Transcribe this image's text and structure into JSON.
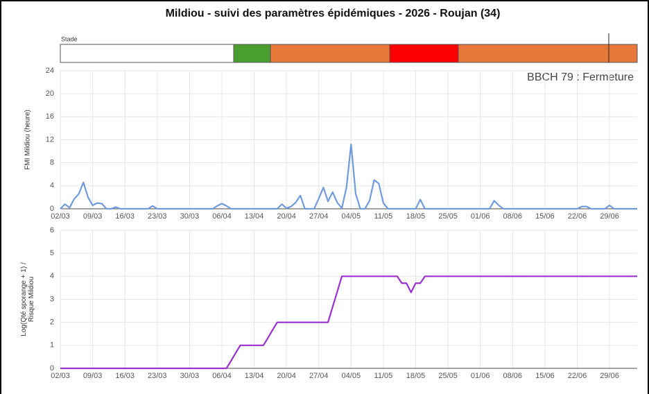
{
  "stage_label": "Stade",
  "chart_data": [
    {
      "type": "line",
      "title": "Mildiou - suivi des paramètres épidémiques - 2026 - Roujan (34)",
      "annotation": "BBCH 79 : Fermeture",
      "ylabel": [
        "FMI Mildiou (heure)"
      ],
      "categories": [
        "02/03",
        null,
        null,
        null,
        null,
        null,
        null,
        "09/03",
        null,
        null,
        null,
        null,
        null,
        null,
        "16/03",
        null,
        null,
        null,
        null,
        null,
        null,
        "23/03",
        null,
        null,
        null,
        null,
        null,
        null,
        "30/03",
        null,
        null,
        null,
        null,
        null,
        null,
        "06/04",
        null,
        null,
        null,
        null,
        null,
        null,
        "13/04",
        null,
        null,
        null,
        null,
        null,
        null,
        "20/04",
        null,
        null,
        null,
        null,
        null,
        null,
        "27/04",
        null,
        null,
        null,
        null,
        null,
        null,
        "04/05",
        null,
        null,
        null,
        null,
        null,
        null,
        "11/05",
        null,
        null,
        null,
        null,
        null,
        null,
        "18/05",
        null,
        null,
        null,
        null,
        null,
        null,
        "25/05",
        null,
        null,
        null,
        null,
        null,
        null,
        "01/06",
        null,
        null,
        null,
        null,
        null,
        null,
        "08/06",
        null,
        null,
        null,
        null,
        null,
        null,
        "15/06",
        null,
        null,
        null,
        null,
        null,
        null,
        "22/06",
        null,
        null,
        null,
        null,
        null,
        null,
        "29/06",
        null,
        null,
        null,
        null,
        null,
        null
      ],
      "series": [
        {
          "name": "FMI",
          "color": "#6f9bde",
          "values": [
            0,
            0.8,
            0.2,
            1.7,
            2.6,
            4.6,
            2,
            0.6,
            1,
            0.9,
            0,
            0,
            0.3,
            0,
            0,
            0,
            0,
            0,
            0,
            0,
            0.5,
            0,
            0,
            0,
            0,
            0,
            0,
            0,
            0,
            0,
            0,
            0,
            0,
            0,
            0.5,
            0.9,
            0.5,
            0,
            0,
            0,
            0,
            0,
            0,
            0,
            0,
            0,
            0,
            0,
            0.8,
            0.1,
            0.4,
            1.1,
            2.3,
            0,
            0,
            0,
            1.8,
            3.7,
            1.3,
            2.9,
            1.1,
            0.1,
            3.7,
            11.2,
            2.6,
            0,
            0,
            1.4,
            5,
            4.4,
            1,
            0,
            0,
            0,
            0,
            0,
            0,
            0,
            1.6,
            0,
            0,
            0,
            0,
            0,
            0,
            0,
            0,
            0,
            0,
            0,
            0,
            0,
            0,
            0,
            1.4,
            0.6,
            0,
            0,
            0,
            0,
            0,
            0,
            0,
            0,
            0,
            0,
            0,
            0,
            0,
            0,
            0,
            0,
            0,
            0.4,
            0.4,
            0,
            0,
            0,
            0,
            0.6,
            0,
            0,
            0,
            0,
            0,
            0
          ]
        }
      ],
      "ylim": [
        0,
        24
      ],
      "yticks": [
        0,
        4,
        8,
        12,
        16,
        20,
        24
      ],
      "grid": true
    },
    {
      "type": "line",
      "ylabel": [
        "Log(Qté sporange + 1) /",
        "Risque Mildiou"
      ],
      "categories": [
        "02/03",
        null,
        null,
        null,
        null,
        null,
        null,
        "09/03",
        null,
        null,
        null,
        null,
        null,
        null,
        "16/03",
        null,
        null,
        null,
        null,
        null,
        null,
        "23/03",
        null,
        null,
        null,
        null,
        null,
        null,
        "30/03",
        null,
        null,
        null,
        null,
        null,
        null,
        "06/04",
        null,
        null,
        null,
        null,
        null,
        null,
        "13/04",
        null,
        null,
        null,
        null,
        null,
        null,
        "20/04",
        null,
        null,
        null,
        null,
        null,
        null,
        "27/04",
        null,
        null,
        null,
        null,
        null,
        null,
        "04/05",
        null,
        null,
        null,
        null,
        null,
        null,
        "11/05",
        null,
        null,
        null,
        null,
        null,
        null,
        "18/05",
        null,
        null,
        null,
        null,
        null,
        null,
        "25/05",
        null,
        null,
        null,
        null,
        null,
        null,
        "01/06",
        null,
        null,
        null,
        null,
        null,
        null,
        "08/06",
        null,
        null,
        null,
        null,
        null,
        null,
        "15/06",
        null,
        null,
        null,
        null,
        null,
        null,
        "22/06",
        null,
        null,
        null,
        null,
        null,
        null,
        "29/06",
        null,
        null,
        null,
        null,
        null,
        null
      ],
      "series": [
        {
          "name": "Risque",
          "color": "#9b30d0",
          "values": [
            0,
            0,
            0,
            0,
            0,
            0,
            0,
            0,
            0,
            0,
            0,
            0,
            0,
            0,
            0,
            0,
            0,
            0,
            0,
            0,
            0,
            0,
            0,
            0,
            0,
            0,
            0,
            0,
            0,
            0,
            0,
            0,
            0,
            0,
            0,
            0,
            0,
            0.33,
            0.67,
            1,
            1,
            1,
            1,
            1,
            1,
            1.33,
            1.67,
            2,
            2,
            2,
            2,
            2,
            2,
            2,
            2,
            2,
            2,
            2,
            2,
            2.67,
            3.33,
            4,
            4,
            4,
            4,
            4,
            4,
            4,
            4,
            4,
            4,
            4,
            4,
            4,
            3.7,
            3.7,
            3.3,
            3.7,
            3.7,
            4,
            4,
            4,
            4,
            4,
            4,
            4,
            4,
            4,
            4,
            4,
            4,
            4,
            4,
            4,
            4,
            4,
            4,
            4,
            4,
            4,
            4,
            4,
            4,
            4,
            4,
            4,
            4,
            4,
            4,
            4,
            4,
            4,
            4,
            4,
            4,
            4,
            4,
            4,
            4,
            4,
            4,
            4,
            4,
            4,
            4,
            4
          ]
        }
      ],
      "ylim": [
        0,
        6
      ],
      "yticks": [
        0,
        1,
        2,
        3,
        4,
        5,
        6
      ],
      "grid": true
    }
  ]
}
